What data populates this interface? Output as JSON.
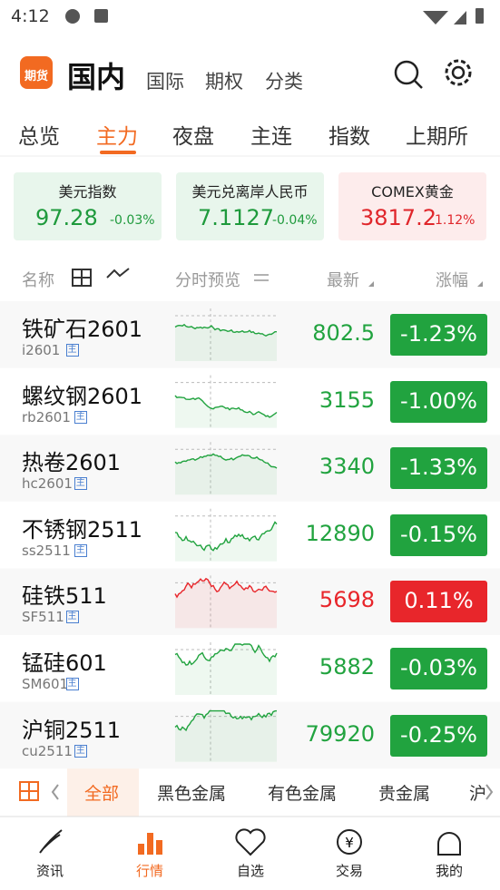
{
  "status_bar": {
    "time": "4:12"
  },
  "header": {
    "logo": "期货",
    "title": "国内",
    "tabs": [
      "国际",
      "期权",
      "分类"
    ]
  },
  "sub_tabs": {
    "items": [
      "总览",
      "主力",
      "夜盘",
      "主连",
      "指数",
      "上期所"
    ],
    "active": 1
  },
  "cards": [
    {
      "name": "美元指数",
      "price": "97.28",
      "change": "-0.03%",
      "color": "#1e9a3c",
      "bg": "#e8f6ec"
    },
    {
      "name": "美元兑离岸人民币",
      "price": "7.1127",
      "change": "-0.04%",
      "color": "#1e9a3c",
      "bg": "#e8f6ec"
    },
    {
      "name": "COMEX黄金",
      "price": "3817.2",
      "change": "1.12%",
      "color": "#e0262b",
      "bg": "#fdecec"
    }
  ],
  "columns": {
    "name": "名称",
    "preview": "分时预览",
    "latest": "最新",
    "change": "涨幅"
  },
  "rows": [
    {
      "name": "铁矿石2601",
      "code": "i2601",
      "tag": "主",
      "price": "802.5",
      "change": "-1.23%",
      "color": "#21a33f"
    },
    {
      "name": "螺纹钢2601",
      "code": "rb2601",
      "tag": "主",
      "price": "3155",
      "change": "-1.00%",
      "color": "#21a33f"
    },
    {
      "name": "热卷2601",
      "code": "hc2601",
      "tag": "主",
      "price": "3340",
      "change": "-1.33%",
      "color": "#21a33f"
    },
    {
      "name": "不锈钢2511",
      "code": "ss2511",
      "tag": "主",
      "price": "12890",
      "change": "-0.15%",
      "color": "#21a33f"
    },
    {
      "name": "硅铁511",
      "code": "SF511",
      "tag": "主",
      "price": "5698",
      "change": "0.11%",
      "color": "#e8262b"
    },
    {
      "name": "锰硅601",
      "code": "SM601",
      "tag": "主",
      "price": "5882",
      "change": "-0.03%",
      "color": "#21a33f"
    },
    {
      "name": "沪铜2511",
      "code": "cu2511",
      "tag": "主",
      "price": "79920",
      "change": "-0.25%",
      "color": "#21a33f"
    }
  ],
  "filter_bar": {
    "items": [
      "全部",
      "黑色金属",
      "有色金属",
      "贵金属",
      "沪"
    ],
    "active": 0
  },
  "bottom_nav": {
    "items": [
      "资讯",
      "行情",
      "自选",
      "交易",
      "我的"
    ],
    "active": 1
  }
}
